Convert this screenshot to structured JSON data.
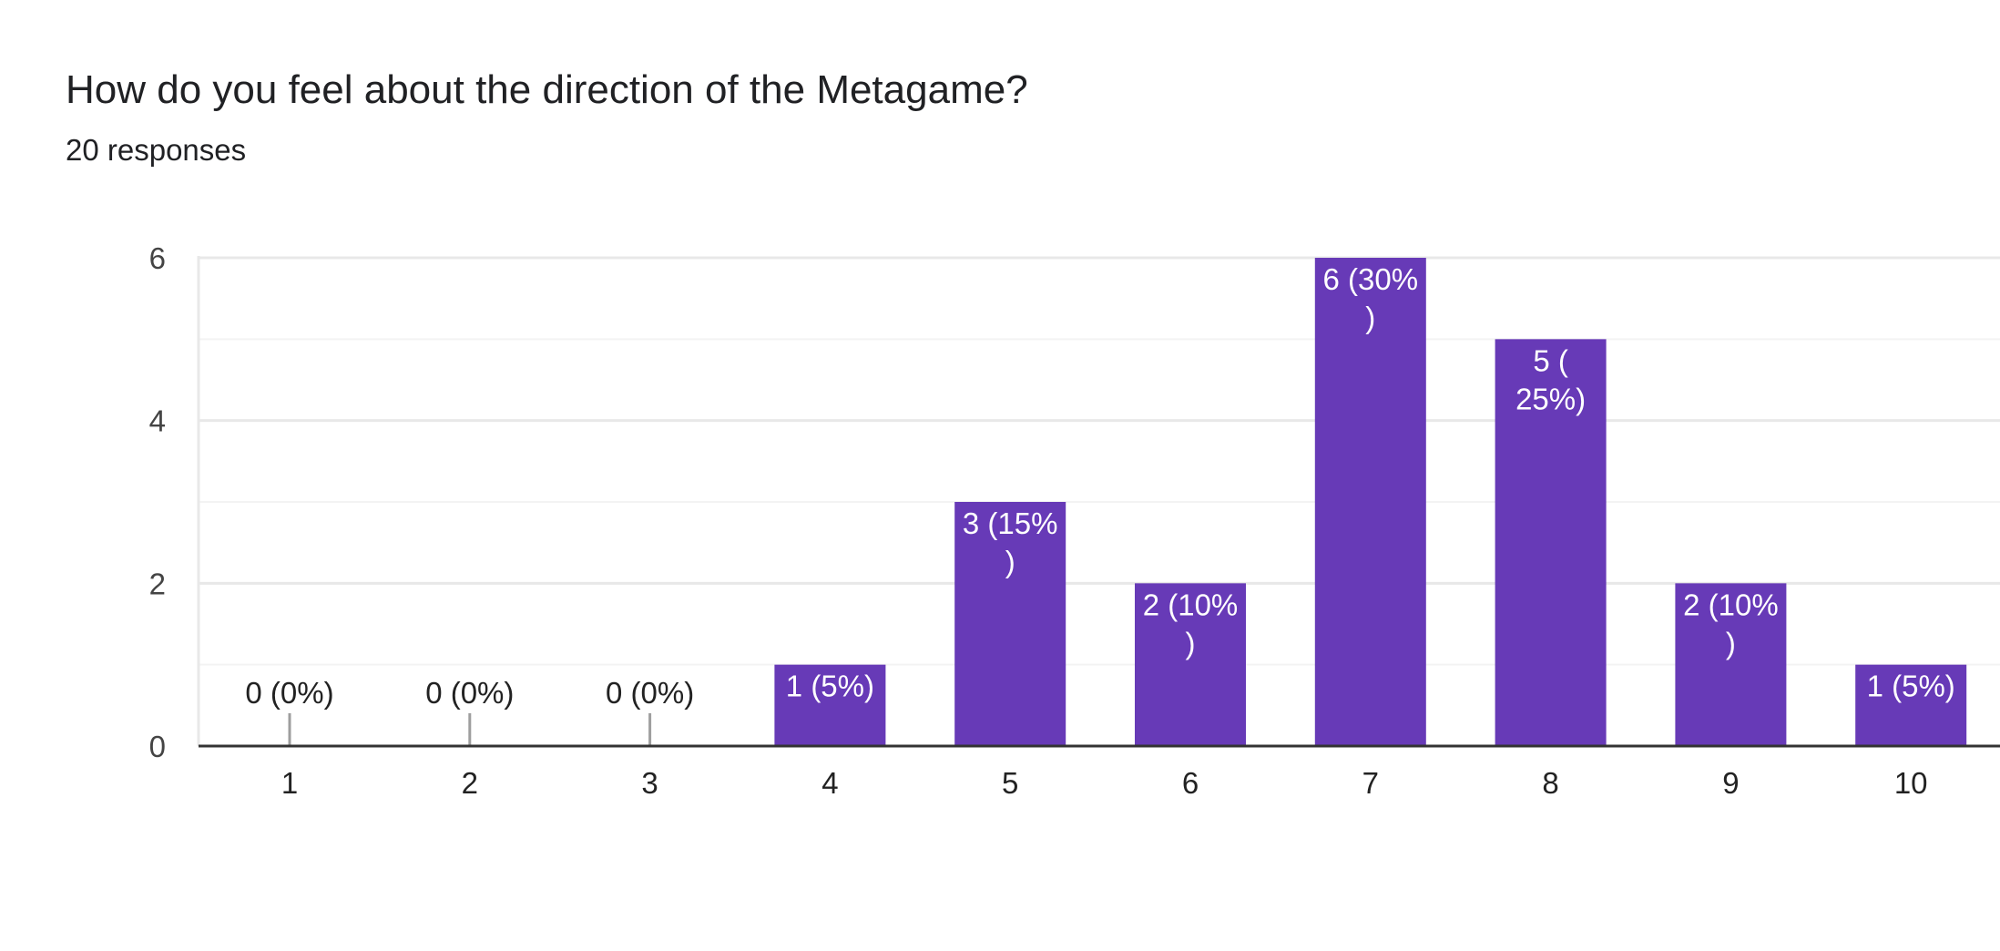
{
  "header": {
    "title": "How do you feel about the direction of the Metagame?",
    "subtitle": "20 responses"
  },
  "chart_data": {
    "type": "bar",
    "categories": [
      "1",
      "2",
      "3",
      "4",
      "5",
      "6",
      "7",
      "8",
      "9",
      "10"
    ],
    "values": [
      0,
      0,
      0,
      1,
      3,
      2,
      6,
      5,
      2,
      1
    ],
    "data_labels": [
      [
        "0 (0%)"
      ],
      [
        "0 (0%)"
      ],
      [
        "0 (0%)"
      ],
      [
        "1 (5%)"
      ],
      [
        "3 (15%",
        ")"
      ],
      [
        "2 (10%",
        ")"
      ],
      [
        "6 (30%",
        ")"
      ],
      [
        "5 (",
        "25%)"
      ],
      [
        "2 (10%",
        ")"
      ],
      [
        "1 (5%)"
      ]
    ],
    "y_ticks": [
      "0",
      "2",
      "4",
      "6"
    ],
    "ylim": [
      0,
      6
    ],
    "grid": true,
    "bar_color": "#673ab7",
    "title": "How do you feel about the direction of the Metagame?",
    "subtitle": "20 responses",
    "xlabel": "",
    "ylabel": ""
  }
}
